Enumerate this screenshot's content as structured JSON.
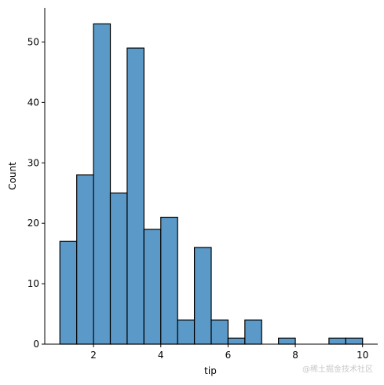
{
  "chart_data": {
    "type": "bar",
    "title": "",
    "xlabel": "tip",
    "ylabel": "Count",
    "bin_edges": [
      1.0,
      1.5,
      2.0,
      2.5,
      3.0,
      3.5,
      4.0,
      4.5,
      5.0,
      5.5,
      6.0,
      6.5,
      7.0,
      7.5,
      8.0,
      8.5,
      9.0,
      9.5,
      10.0
    ],
    "values": [
      17,
      28,
      53,
      25,
      49,
      19,
      21,
      4,
      16,
      4,
      1,
      4,
      0,
      1,
      0,
      0,
      1,
      1
    ],
    "xlim": [
      0.55,
      10.45
    ],
    "ylim": [
      0,
      55.65
    ],
    "x_ticks": [
      "2",
      "4",
      "6",
      "8",
      "10"
    ],
    "y_ticks": [
      "0",
      "10",
      "20",
      "30",
      "40",
      "50"
    ],
    "bar_color": "#5b9ac8",
    "edge_color": "#000000",
    "grid": false
  },
  "watermark": "@稀土掘金技术社区"
}
